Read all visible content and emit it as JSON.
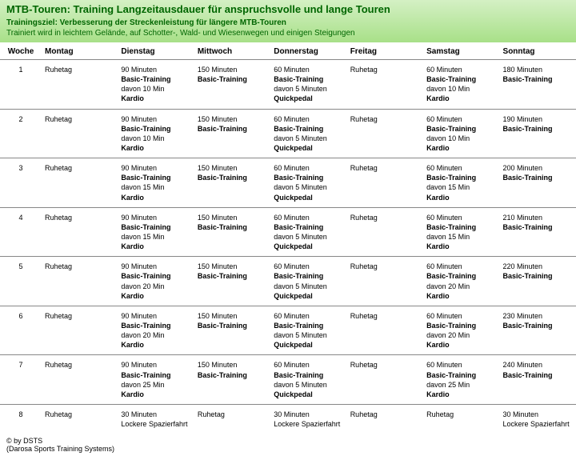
{
  "colors": {
    "header_bg_top": "#d4f0c4",
    "header_bg_bottom": "#a8e088",
    "text_green": "#006600",
    "border": "#888888",
    "background": "#ffffff"
  },
  "header": {
    "title": "MTB-Touren: Training Langzeitausdauer für anspruchsvolle und lange Touren",
    "subtitle": "Trainingsziel: Verbesserung der Streckenleistung für längere MTB-Touren",
    "description": "Trainiert wird in leichtem Gelände, auf Schotter-, Wald- und Wiesenwegen und einigen Steigungen"
  },
  "columns": [
    "Woche",
    "Montag",
    "Dienstag",
    "Mittwoch",
    "Donnerstag",
    "Freitag",
    "Samstag",
    "Sonntag"
  ],
  "rows": [
    {
      "week": "1",
      "mon": [
        {
          "t": "Ruhetag"
        }
      ],
      "tue": [
        {
          "t": "90 Minuten"
        },
        {
          "t": "Basic-Training",
          "b": 1
        },
        {
          "t": "davon 10 Min"
        },
        {
          "t": "Kardio",
          "b": 1
        }
      ],
      "wed": [
        {
          "t": "150 Minuten"
        },
        {
          "t": "Basic-Training",
          "b": 1
        }
      ],
      "thu": [
        {
          "t": "60 Minuten"
        },
        {
          "t": "Basic-Training",
          "b": 1
        },
        {
          "t": "davon 5 Minuten"
        },
        {
          "t": "Quickpedal",
          "b": 1
        }
      ],
      "fri": [
        {
          "t": "Ruhetag"
        }
      ],
      "sat": [
        {
          "t": "60 Minuten"
        },
        {
          "t": "Basic-Training",
          "b": 1
        },
        {
          "t": "davon 10 Min"
        },
        {
          "t": "Kardio",
          "b": 1
        }
      ],
      "sun": [
        {
          "t": "180 Minuten"
        },
        {
          "t": "Basic-Training",
          "b": 1
        }
      ]
    },
    {
      "week": "2",
      "mon": [
        {
          "t": "Ruhetag"
        }
      ],
      "tue": [
        {
          "t": "90 Minuten"
        },
        {
          "t": "Basic-Training",
          "b": 1
        },
        {
          "t": "davon 10 Min"
        },
        {
          "t": "Kardio",
          "b": 1
        }
      ],
      "wed": [
        {
          "t": "150 Minuten"
        },
        {
          "t": "Basic-Training",
          "b": 1
        }
      ],
      "thu": [
        {
          "t": "60 Minuten"
        },
        {
          "t": "Basic-Training",
          "b": 1
        },
        {
          "t": "davon 5 Minuten"
        },
        {
          "t": "Quickpedal",
          "b": 1
        }
      ],
      "fri": [
        {
          "t": "Ruhetag"
        }
      ],
      "sat": [
        {
          "t": "60 Minuten"
        },
        {
          "t": "Basic-Training",
          "b": 1
        },
        {
          "t": "davon 10 Min"
        },
        {
          "t": "Kardio",
          "b": 1
        }
      ],
      "sun": [
        {
          "t": "190 Minuten"
        },
        {
          "t": "Basic-Training",
          "b": 1
        }
      ]
    },
    {
      "week": "3",
      "mon": [
        {
          "t": "Ruhetag"
        }
      ],
      "tue": [
        {
          "t": "90 Minuten"
        },
        {
          "t": "Basic-Training",
          "b": 1
        },
        {
          "t": "davon 15 Min"
        },
        {
          "t": "Kardio",
          "b": 1
        }
      ],
      "wed": [
        {
          "t": "150 Minuten"
        },
        {
          "t": "Basic-Training",
          "b": 1
        }
      ],
      "thu": [
        {
          "t": "60 Minuten"
        },
        {
          "t": "Basic-Training",
          "b": 1
        },
        {
          "t": "davon 5 Minuten"
        },
        {
          "t": "Quickpedal",
          "b": 1
        }
      ],
      "fri": [
        {
          "t": "Ruhetag"
        }
      ],
      "sat": [
        {
          "t": "60 Minuten"
        },
        {
          "t": "Basic-Training",
          "b": 1
        },
        {
          "t": "davon 15 Min"
        },
        {
          "t": "Kardio",
          "b": 1
        }
      ],
      "sun": [
        {
          "t": "200 Minuten"
        },
        {
          "t": "Basic-Training",
          "b": 1
        }
      ]
    },
    {
      "week": "4",
      "mon": [
        {
          "t": "Ruhetag"
        }
      ],
      "tue": [
        {
          "t": "90 Minuten"
        },
        {
          "t": "Basic-Training",
          "b": 1
        },
        {
          "t": "davon 15 Min"
        },
        {
          "t": "Kardio",
          "b": 1
        }
      ],
      "wed": [
        {
          "t": "150 Minuten"
        },
        {
          "t": "Basic-Training",
          "b": 1
        }
      ],
      "thu": [
        {
          "t": "60 Minuten"
        },
        {
          "t": "Basic-Training",
          "b": 1
        },
        {
          "t": "davon 5 Minuten"
        },
        {
          "t": "Quickpedal",
          "b": 1
        }
      ],
      "fri": [
        {
          "t": "Ruhetag"
        }
      ],
      "sat": [
        {
          "t": "60 Minuten"
        },
        {
          "t": "Basic-Training",
          "b": 1
        },
        {
          "t": "davon 15 Min"
        },
        {
          "t": "Kardio",
          "b": 1
        }
      ],
      "sun": [
        {
          "t": "210 Minuten"
        },
        {
          "t": "Basic-Training",
          "b": 1
        }
      ]
    },
    {
      "week": "5",
      "mon": [
        {
          "t": "Ruhetag"
        }
      ],
      "tue": [
        {
          "t": "90 Minuten"
        },
        {
          "t": "Basic-Training",
          "b": 1
        },
        {
          "t": "davon 20 Min"
        },
        {
          "t": "Kardio",
          "b": 1
        }
      ],
      "wed": [
        {
          "t": "150 Minuten"
        },
        {
          "t": "Basic-Training",
          "b": 1
        }
      ],
      "thu": [
        {
          "t": "60 Minuten"
        },
        {
          "t": "Basic-Training",
          "b": 1
        },
        {
          "t": "davon 5 Minuten"
        },
        {
          "t": "Quickpedal",
          "b": 1
        }
      ],
      "fri": [
        {
          "t": "Ruhetag"
        }
      ],
      "sat": [
        {
          "t": "60 Minuten"
        },
        {
          "t": "Basic-Training",
          "b": 1
        },
        {
          "t": "davon 20 Min"
        },
        {
          "t": "Kardio",
          "b": 1
        }
      ],
      "sun": [
        {
          "t": "220 Minuten"
        },
        {
          "t": "Basic-Training",
          "b": 1
        }
      ]
    },
    {
      "week": "6",
      "mon": [
        {
          "t": "Ruhetag"
        }
      ],
      "tue": [
        {
          "t": "90 Minuten"
        },
        {
          "t": "Basic-Training",
          "b": 1
        },
        {
          "t": "davon 20 Min"
        },
        {
          "t": "Kardio",
          "b": 1
        }
      ],
      "wed": [
        {
          "t": "150 Minuten"
        },
        {
          "t": "Basic-Training",
          "b": 1
        }
      ],
      "thu": [
        {
          "t": "60 Minuten"
        },
        {
          "t": "Basic-Training",
          "b": 1
        },
        {
          "t": "davon 5 Minuten"
        },
        {
          "t": "Quickpedal",
          "b": 1
        }
      ],
      "fri": [
        {
          "t": "Ruhetag"
        }
      ],
      "sat": [
        {
          "t": "60 Minuten"
        },
        {
          "t": "Basic-Training",
          "b": 1
        },
        {
          "t": "davon 20 Min"
        },
        {
          "t": "Kardio",
          "b": 1
        }
      ],
      "sun": [
        {
          "t": "230 Minuten"
        },
        {
          "t": "Basic-Training",
          "b": 1
        }
      ]
    },
    {
      "week": "7",
      "mon": [
        {
          "t": "Ruhetag"
        }
      ],
      "tue": [
        {
          "t": "90 Minuten"
        },
        {
          "t": "Basic-Training",
          "b": 1
        },
        {
          "t": "davon 25 Min"
        },
        {
          "t": "Kardio",
          "b": 1
        }
      ],
      "wed": [
        {
          "t": "150 Minuten"
        },
        {
          "t": "Basic-Training",
          "b": 1
        }
      ],
      "thu": [
        {
          "t": "60 Minuten"
        },
        {
          "t": "Basic-Training",
          "b": 1
        },
        {
          "t": "davon 5 Minuten"
        },
        {
          "t": "Quickpedal",
          "b": 1
        }
      ],
      "fri": [
        {
          "t": "Ruhetag"
        }
      ],
      "sat": [
        {
          "t": "60 Minuten"
        },
        {
          "t": "Basic-Training",
          "b": 1
        },
        {
          "t": "davon 25 Min"
        },
        {
          "t": "Kardio",
          "b": 1
        }
      ],
      "sun": [
        {
          "t": "240 Minuten"
        },
        {
          "t": "Basic-Training",
          "b": 1
        }
      ]
    },
    {
      "week": "8",
      "mon": [
        {
          "t": "Ruhetag"
        }
      ],
      "tue": [
        {
          "t": "30 Minuten"
        },
        {
          "t": "Lockere Spazierfahrt"
        }
      ],
      "wed": [
        {
          "t": "Ruhetag"
        }
      ],
      "thu": [
        {
          "t": "30 Minuten"
        },
        {
          "t": "Lockere Spazierfahrt"
        }
      ],
      "fri": [
        {
          "t": "Ruhetag"
        }
      ],
      "sat": [
        {
          "t": "Ruhetag"
        }
      ],
      "sun": [
        {
          "t": "30 Minuten"
        },
        {
          "t": "Lockere Spazierfahrt"
        }
      ]
    }
  ],
  "footer": "© by DSTS",
  "footer_sub": "(Darosa Sports Training Systems)"
}
